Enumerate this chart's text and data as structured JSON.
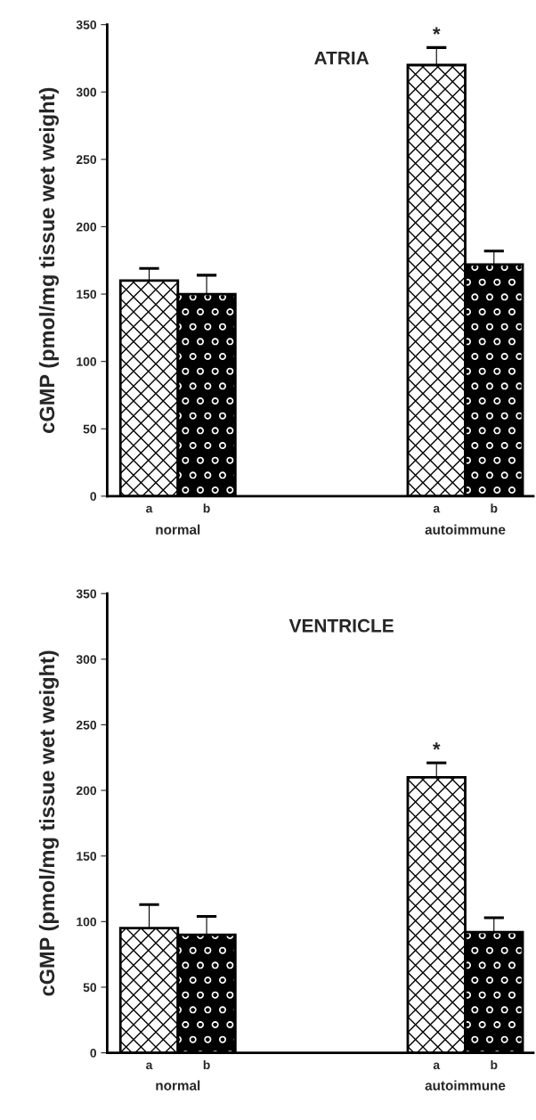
{
  "chart_data": [
    {
      "type": "bar",
      "title": "ATRIA",
      "ylabel": "cGMP (pmol/mg tissue wet weight)",
      "categories": [
        "normal",
        "autoimmune"
      ],
      "series": [
        {
          "name": "a",
          "color": "#ffffff",
          "values": [
            160,
            320
          ],
          "errors": [
            9,
            13
          ]
        },
        {
          "name": "b",
          "color": "#000000",
          "values": [
            150,
            172
          ],
          "errors": [
            14,
            10
          ]
        }
      ],
      "ylim": [
        0,
        350
      ],
      "yticks": [
        0,
        50,
        100,
        150,
        200,
        250,
        300,
        350
      ],
      "grid": false,
      "legend": false,
      "annotations": [
        "*"
      ]
    },
    {
      "type": "bar",
      "title": "VENTRICLE",
      "ylabel": "cGMP (pmol/mg tissue wet weight)",
      "categories": [
        "normal",
        "autoimmune"
      ],
      "series": [
        {
          "name": "a",
          "color": "#ffffff",
          "values": [
            95,
            210
          ],
          "errors": [
            18,
            11
          ]
        },
        {
          "name": "b",
          "color": "#000000",
          "values": [
            90,
            92
          ],
          "errors": [
            14,
            11
          ]
        }
      ],
      "ylim": [
        0,
        350
      ],
      "yticks": [
        0,
        50,
        100,
        150,
        200,
        250,
        300,
        350
      ],
      "grid": false,
      "legend": false,
      "annotations": [
        "*"
      ]
    }
  ]
}
